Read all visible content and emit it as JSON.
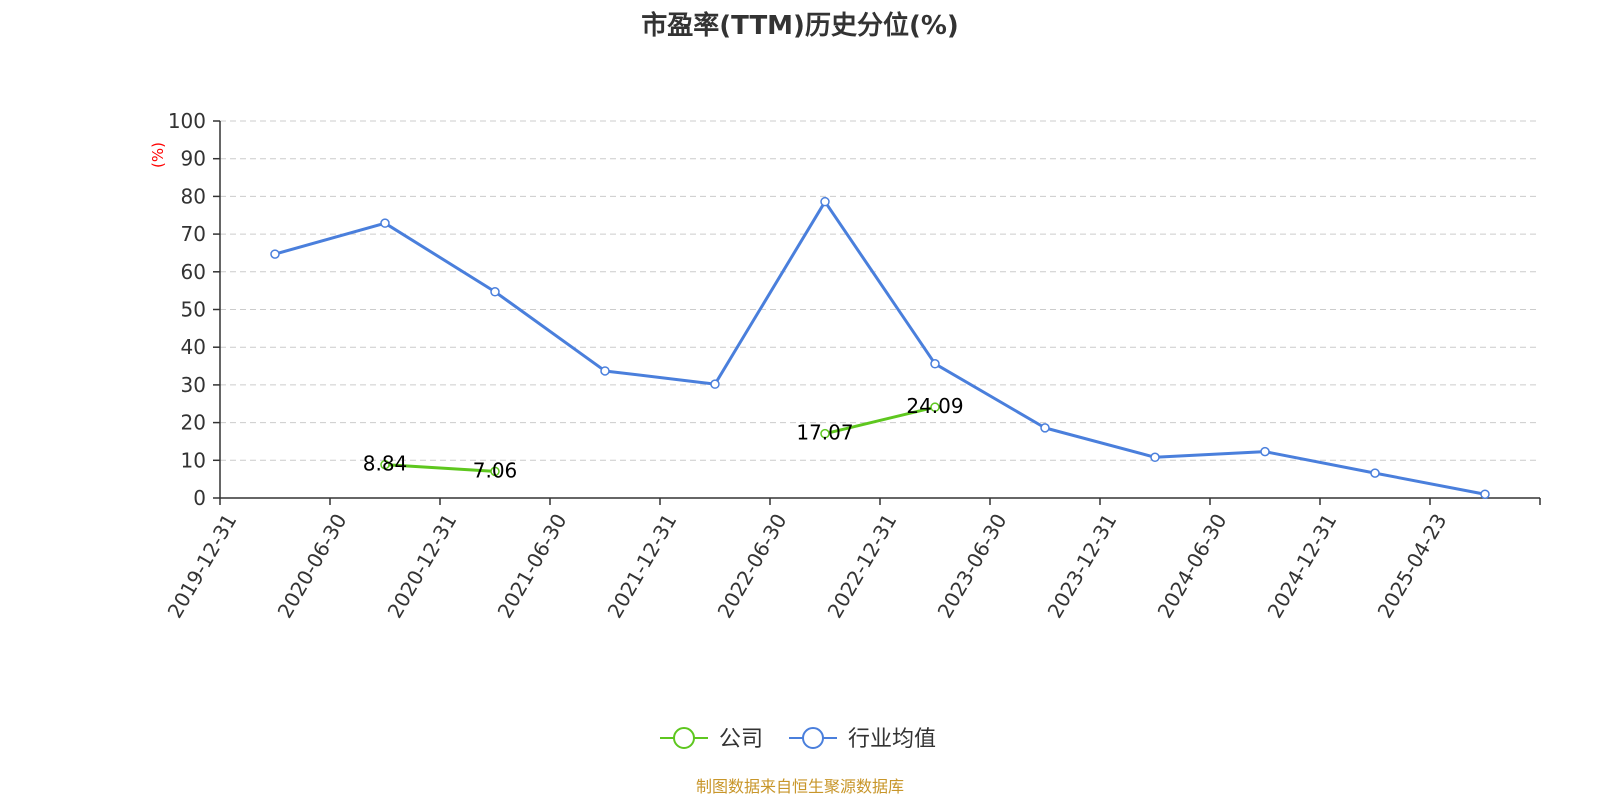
{
  "chart_data": {
    "type": "line",
    "title": "市盈率(TTM)历史分位(%)",
    "ylabel": "(%)",
    "ylim": [
      0,
      100
    ],
    "yticks": [
      0,
      10,
      20,
      30,
      40,
      50,
      60,
      70,
      80,
      90,
      100
    ],
    "categories": [
      "2019-12-31",
      "2020-06-30",
      "2020-12-31",
      "2021-06-30",
      "2021-12-31",
      "2022-06-30",
      "2022-12-31",
      "2023-06-30",
      "2023-12-31",
      "2024-06-30",
      "2024-12-31",
      "2025-04-23"
    ],
    "grid": true,
    "legend_position": "bottom",
    "series": [
      {
        "name": "公司",
        "color": "#5ec71f",
        "values": [
          null,
          8.84,
          7.06,
          null,
          null,
          17.07,
          24.09,
          null,
          null,
          null,
          null,
          null
        ],
        "labels": [
          null,
          "8.84",
          "7.06",
          null,
          null,
          "17.07",
          "24.09",
          null,
          null,
          null,
          null,
          null
        ]
      },
      {
        "name": "行业均值",
        "color": "#4a7fdc",
        "values": [
          64.7,
          72.9,
          54.7,
          33.7,
          30.2,
          78.6,
          35.6,
          18.6,
          10.8,
          12.3,
          6.6,
          1.0
        ]
      }
    ],
    "source": "制图数据来自恒生聚源数据库"
  }
}
